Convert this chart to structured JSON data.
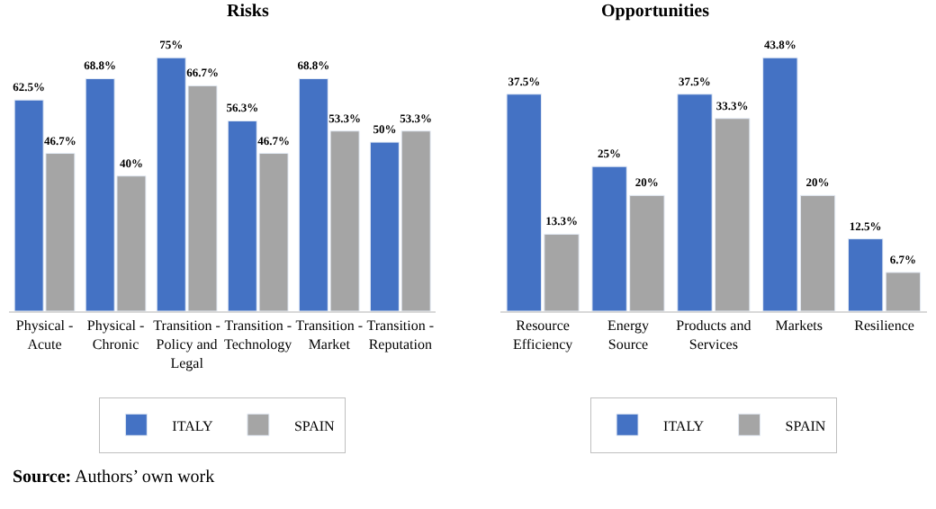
{
  "chart_data": [
    {
      "type": "bar",
      "title": "Risks",
      "categories": [
        "Physical - Acute",
        "Physical - Chronic",
        "Transition - Policy and Legal",
        "Transition - Technology",
        "Transition - Market",
        "Transition - Reputation"
      ],
      "series": [
        {
          "name": "ITALY",
          "color": "#4472c4",
          "values": [
            62.5,
            68.8,
            75,
            56.3,
            68.8,
            50
          ],
          "value_labels": [
            "62.5%",
            "68.8%",
            "75%",
            "56.3%",
            "68.8%",
            "50%"
          ]
        },
        {
          "name": "SPAIN",
          "color": "#a5a5a5",
          "values": [
            46.7,
            40,
            66.7,
            46.7,
            53.3,
            53.3
          ],
          "value_labels": [
            "46.7%",
            "40%",
            "66.7%",
            "46.7%",
            "53.3%",
            "53.3%"
          ]
        }
      ],
      "legend": "bottom",
      "tick_labels": "x"
    },
    {
      "type": "bar",
      "title": "Opportunities",
      "categories": [
        "Resource Efficiency",
        "Energy Source",
        "Products and Services",
        "Markets",
        "Resilience"
      ],
      "series": [
        {
          "name": "ITALY",
          "color": "#4472c4",
          "values": [
            37.5,
            25,
            37.5,
            43.8,
            12.5
          ],
          "value_labels": [
            "37.5%",
            "25%",
            "37.5%",
            "43.8%",
            "12.5%"
          ]
        },
        {
          "name": "SPAIN",
          "color": "#a5a5a5",
          "values": [
            13.3,
            20,
            33.3,
            20,
            6.7
          ],
          "value_labels": [
            "13.3%",
            "20%",
            "33.3%",
            "20%",
            "6.7%"
          ]
        }
      ],
      "legend": "bottom",
      "tick_labels": "x",
      "annotations": [
        "Source: Authors’ own work"
      ]
    }
  ]
}
